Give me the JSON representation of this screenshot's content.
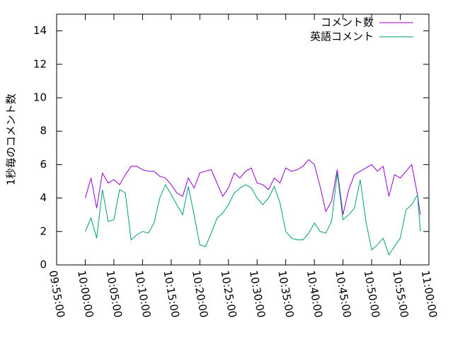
{
  "chart_data": {
    "type": "line",
    "ylabel": "1秒毎のコメント数",
    "x": [
      "10:00:00",
      "10:01:00",
      "10:02:00",
      "10:03:00",
      "10:04:00",
      "10:05:00",
      "10:06:00",
      "10:07:00",
      "10:08:00",
      "10:09:00",
      "10:10:00",
      "10:11:00",
      "10:12:00",
      "10:13:00",
      "10:14:00",
      "10:15:00",
      "10:16:00",
      "10:17:00",
      "10:18:00",
      "10:19:00",
      "10:20:00",
      "10:21:00",
      "10:22:00",
      "10:23:00",
      "10:24:00",
      "10:25:00",
      "10:26:00",
      "10:27:00",
      "10:28:00",
      "10:29:00",
      "10:30:00",
      "10:31:00",
      "10:32:00",
      "10:33:00",
      "10:34:00",
      "10:35:00",
      "10:36:00",
      "10:37:00",
      "10:38:00",
      "10:39:00",
      "10:40:00",
      "10:41:00",
      "10:42:00",
      "10:43:00",
      "10:44:00",
      "10:45:00",
      "10:46:00",
      "10:47:00",
      "10:48:00",
      "10:49:00",
      "10:50:00",
      "10:51:00",
      "10:52:00",
      "10:53:00",
      "10:54:00",
      "10:55:00",
      "10:56:00",
      "10:57:00",
      "10:58:00",
      "10:58:30"
    ],
    "series": [
      {
        "name": "コメント数",
        "color": "#9400d3",
        "values": [
          4.0,
          5.2,
          3.4,
          5.5,
          4.9,
          5.1,
          4.8,
          5.4,
          5.9,
          5.9,
          5.7,
          5.6,
          5.6,
          5.3,
          5.2,
          4.8,
          4.3,
          4.1,
          5.2,
          4.6,
          5.5,
          5.6,
          5.7,
          4.9,
          4.1,
          4.6,
          5.5,
          5.2,
          5.6,
          5.8,
          4.9,
          4.8,
          4.5,
          5.2,
          4.9,
          5.8,
          5.6,
          5.7,
          5.9,
          6.3,
          6.0,
          4.7,
          3.2,
          3.8,
          5.7,
          3.0,
          4.5,
          5.4,
          5.6,
          5.8,
          6.0,
          5.6,
          5.9,
          4.1,
          5.4,
          5.2,
          5.6,
          6.0,
          4.2,
          3.0
        ]
      },
      {
        "name": "英語コメント",
        "color": "#009e73",
        "values": [
          2.0,
          2.8,
          1.6,
          4.5,
          2.6,
          2.7,
          4.5,
          4.3,
          1.5,
          1.8,
          2.0,
          1.9,
          2.5,
          4.0,
          4.8,
          4.2,
          3.6,
          3.0,
          4.7,
          3.0,
          1.2,
          1.1,
          1.9,
          2.8,
          3.1,
          3.6,
          4.3,
          4.6,
          4.8,
          4.6,
          4.0,
          3.6,
          4.0,
          4.7,
          3.7,
          2.0,
          1.6,
          1.5,
          1.5,
          1.9,
          2.5,
          2.0,
          1.9,
          2.6,
          5.5,
          2.7,
          3.0,
          3.4,
          5.1,
          2.6,
          0.9,
          1.2,
          1.6,
          0.6,
          1.1,
          1.6,
          3.3,
          3.6,
          4.2,
          2.0
        ]
      }
    ],
    "xlim": [
      "09:55:00",
      "11:00:00"
    ],
    "xticks": [
      "09:55:00",
      "10:00:00",
      "10:05:00",
      "10:10:00",
      "10:15:00",
      "10:20:00",
      "10:25:00",
      "10:30:00",
      "10:35:00",
      "10:40:00",
      "10:45:00",
      "10:50:00",
      "10:55:00",
      "11:00:00"
    ],
    "ylim": [
      0,
      15
    ],
    "yticks": [
      0,
      2,
      4,
      6,
      8,
      10,
      12,
      14
    ],
    "legend": "top-right"
  }
}
